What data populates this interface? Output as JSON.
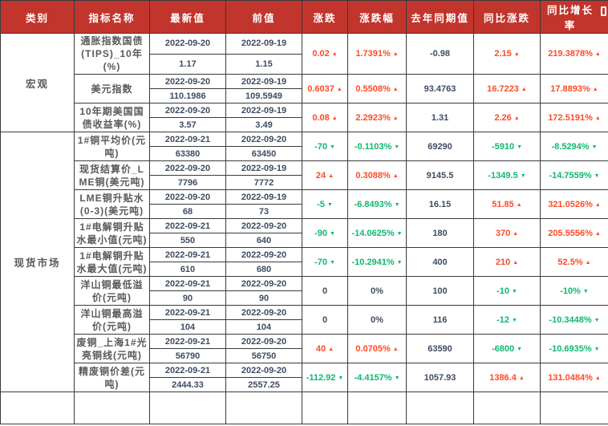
{
  "table": {
    "columns": [
      "类别",
      "指标名称",
      "最新值",
      "前值",
      "涨跌",
      "涨跌幅",
      "去年同期值",
      "同比涨跌",
      "同比增长率"
    ],
    "header_icon": "bookmark-icon",
    "colors": {
      "header_bg": "#c1352c",
      "up_red": "#ff4a26",
      "down_green": "#10b76e",
      "neutral_navy": "#3d4c63",
      "label_gray": "#5a5a5a"
    },
    "categories": [
      {
        "label": "宏观",
        "rows": 3
      },
      {
        "label": "现货市场",
        "rows": 9
      }
    ],
    "rows": [
      {
        "name": "通胀指数国债(TIPS)_10年(%)",
        "latest": {
          "date": "2022-09-20",
          "value": "1.17"
        },
        "prev": {
          "date": "2022-09-19",
          "value": "1.15"
        },
        "change": {
          "text": "0.02",
          "dir": "up"
        },
        "change_pct": {
          "text": "1.7391%",
          "dir": "up"
        },
        "last_year": "-0.98",
        "yoy_change": {
          "text": "2.15",
          "dir": "up"
        },
        "yoy_growth": {
          "text": "219.3878%",
          "dir": "up"
        }
      },
      {
        "name": "美元指数",
        "latest": {
          "date": "2022-09-20",
          "value": "110.1986"
        },
        "prev": {
          "date": "2022-09-19",
          "value": "109.5949"
        },
        "change": {
          "text": "0.6037",
          "dir": "up"
        },
        "change_pct": {
          "text": "0.5508%",
          "dir": "up"
        },
        "last_year": "93.4763",
        "yoy_change": {
          "text": "16.7223",
          "dir": "up"
        },
        "yoy_growth": {
          "text": "17.8893%",
          "dir": "up"
        }
      },
      {
        "name": "10年期美国国债收益率(%)",
        "latest": {
          "date": "2022-09-20",
          "value": "3.57"
        },
        "prev": {
          "date": "2022-09-19",
          "value": "3.49"
        },
        "change": {
          "text": "0.08",
          "dir": "up"
        },
        "change_pct": {
          "text": "2.2923%",
          "dir": "up"
        },
        "last_year": "1.31",
        "yoy_change": {
          "text": "2.26",
          "dir": "up"
        },
        "yoy_growth": {
          "text": "172.5191%",
          "dir": "up"
        }
      },
      {
        "name": "1#铜平均价(元吨)",
        "latest": {
          "date": "2022-09-21",
          "value": "63380"
        },
        "prev": {
          "date": "2022-09-20",
          "value": "63450"
        },
        "change": {
          "text": "-70",
          "dir": "down"
        },
        "change_pct": {
          "text": "-0.1103%",
          "dir": "down"
        },
        "last_year": "69290",
        "yoy_change": {
          "text": "-5910",
          "dir": "down"
        },
        "yoy_growth": {
          "text": "-8.5294%",
          "dir": "down"
        }
      },
      {
        "name": "现货结算价_LME铜(美元吨)",
        "latest": {
          "date": "2022-09-20",
          "value": "7796"
        },
        "prev": {
          "date": "2022-09-19",
          "value": "7772"
        },
        "change": {
          "text": "24",
          "dir": "up"
        },
        "change_pct": {
          "text": "0.3088%",
          "dir": "up"
        },
        "last_year": "9145.5",
        "yoy_change": {
          "text": "-1349.5",
          "dir": "down"
        },
        "yoy_growth": {
          "text": "-14.7559%",
          "dir": "down"
        }
      },
      {
        "name": "LME铜升贴水(0-3)(美元吨)",
        "latest": {
          "date": "2022-09-20",
          "value": "68"
        },
        "prev": {
          "date": "2022-09-19",
          "value": "73"
        },
        "change": {
          "text": "-5",
          "dir": "down"
        },
        "change_pct": {
          "text": "-6.8493%",
          "dir": "down"
        },
        "last_year": "16.15",
        "yoy_change": {
          "text": "51.85",
          "dir": "up"
        },
        "yoy_growth": {
          "text": "321.0526%",
          "dir": "up"
        }
      },
      {
        "name": "1#电解铜升贴水最小值(元吨)",
        "latest": {
          "date": "2022-09-21",
          "value": "550"
        },
        "prev": {
          "date": "2022-09-20",
          "value": "640"
        },
        "change": {
          "text": "-90",
          "dir": "down"
        },
        "change_pct": {
          "text": "-14.0625%",
          "dir": "down"
        },
        "last_year": "180",
        "yoy_change": {
          "text": "370",
          "dir": "up"
        },
        "yoy_growth": {
          "text": "205.5556%",
          "dir": "up"
        }
      },
      {
        "name": "1#电解铜升贴水最大值(元吨)",
        "latest": {
          "date": "2022-09-21",
          "value": "610"
        },
        "prev": {
          "date": "2022-09-20",
          "value": "680"
        },
        "change": {
          "text": "-70",
          "dir": "down"
        },
        "change_pct": {
          "text": "-10.2941%",
          "dir": "down"
        },
        "last_year": "400",
        "yoy_change": {
          "text": "210",
          "dir": "up"
        },
        "yoy_growth": {
          "text": "52.5%",
          "dir": "up"
        }
      },
      {
        "name": "洋山铜最低溢价(元吨)",
        "latest": {
          "date": "2022-09-21",
          "value": "90"
        },
        "prev": {
          "date": "2022-09-20",
          "value": "90"
        },
        "change": {
          "text": "0",
          "dir": "flat"
        },
        "change_pct": {
          "text": "0%",
          "dir": "flat"
        },
        "last_year": "100",
        "yoy_change": {
          "text": "-10",
          "dir": "down"
        },
        "yoy_growth": {
          "text": "-10%",
          "dir": "down"
        }
      },
      {
        "name": "洋山铜最高溢价(元吨)",
        "latest": {
          "date": "2022-09-21",
          "value": "104"
        },
        "prev": {
          "date": "2022-09-20",
          "value": "104"
        },
        "change": {
          "text": "0",
          "dir": "flat"
        },
        "change_pct": {
          "text": "0%",
          "dir": "flat"
        },
        "last_year": "116",
        "yoy_change": {
          "text": "-12",
          "dir": "down"
        },
        "yoy_growth": {
          "text": "-10.3448%",
          "dir": "down"
        }
      },
      {
        "name": "废铜_上海1#光亮铜线(元吨)",
        "latest": {
          "date": "2022-09-21",
          "value": "56790"
        },
        "prev": {
          "date": "2022-09-20",
          "value": "56750"
        },
        "change": {
          "text": "40",
          "dir": "up"
        },
        "change_pct": {
          "text": "0.0705%",
          "dir": "up"
        },
        "last_year": "63590",
        "yoy_change": {
          "text": "-6800",
          "dir": "down"
        },
        "yoy_growth": {
          "text": "-10.6935%",
          "dir": "down"
        }
      },
      {
        "name": "精废铜价差(元吨)",
        "latest": {
          "date": "2022-09-21",
          "value": "2444.33"
        },
        "prev": {
          "date": "2022-09-20",
          "value": "2557.25"
        },
        "change": {
          "text": "-112.92",
          "dir": "down"
        },
        "change_pct": {
          "text": "-4.4157%",
          "dir": "down"
        },
        "last_year": "1057.93",
        "yoy_change": {
          "text": "1386.4",
          "dir": "up"
        },
        "yoy_growth": {
          "text": "131.0484%",
          "dir": "up"
        }
      }
    ],
    "arrow_up": "▲",
    "arrow_down": "▼"
  }
}
